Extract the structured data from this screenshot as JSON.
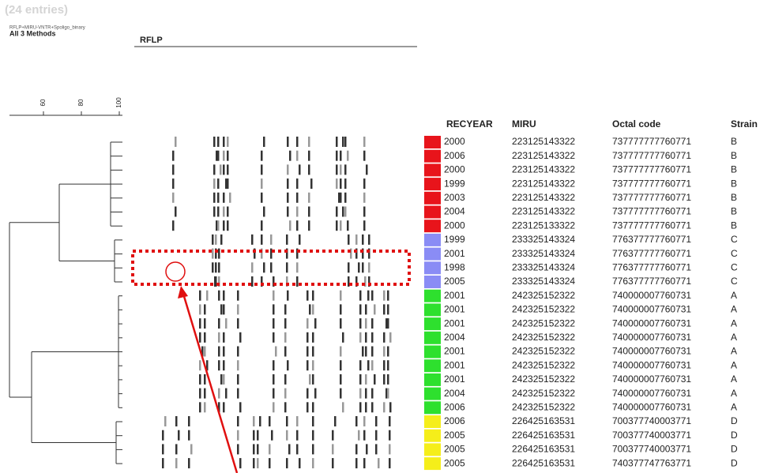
{
  "header": {
    "count": "(24 entries)",
    "methods_full": "RFLP+MIRU-VNTR+Spoligo_binary",
    "methods": "All 3 Methods",
    "panel": "RFLP"
  },
  "dendrogram": {
    "ticks": [
      "60",
      "80",
      "100"
    ]
  },
  "table": {
    "columns": [
      "RECYEAR",
      "MIRU",
      "Octal code",
      "Strain"
    ],
    "strain_colors": {
      "B": "#e8141b",
      "C": "#8a8cf5",
      "A": "#2ee02e",
      "D": "#f5ee1a"
    },
    "rows": [
      [
        "2000",
        "223125143322",
        "737777777760771",
        "B"
      ],
      [
        "2006",
        "223125143322",
        "737777777760771",
        "B"
      ],
      [
        "2000",
        "223125143322",
        "737777777760771",
        "B"
      ],
      [
        "1999",
        "223125143322",
        "737777777760771",
        "B"
      ],
      [
        "2003",
        "223125143322",
        "737777777760771",
        "B"
      ],
      [
        "2004",
        "223125143322",
        "737777777760771",
        "B"
      ],
      [
        "2000",
        "223125133322",
        "737777777760771",
        "B"
      ],
      [
        "1999",
        "233325143324",
        "776377777760771",
        "C"
      ],
      [
        "2001",
        "233325143324",
        "776377777760771",
        "C"
      ],
      [
        "1998",
        "233325143324",
        "776377777760771",
        "C"
      ],
      [
        "2005",
        "233325143324",
        "776377777760771",
        "C"
      ],
      [
        "2001",
        "242325152322",
        "740000007760731",
        "A"
      ],
      [
        "2001",
        "242325152322",
        "740000007760731",
        "A"
      ],
      [
        "2001",
        "242325152322",
        "740000007760731",
        "A"
      ],
      [
        "2004",
        "242325152322",
        "740000007760731",
        "A"
      ],
      [
        "2001",
        "242325152322",
        "740000007760731",
        "A"
      ],
      [
        "2001",
        "242325152322",
        "740000007760731",
        "A"
      ],
      [
        "2001",
        "242325152322",
        "740000007760731",
        "A"
      ],
      [
        "2004",
        "242325152322",
        "740000007760731",
        "A"
      ],
      [
        "2006",
        "242325152322",
        "740000007760731",
        "A"
      ],
      [
        "2006",
        "226425163531",
        "700377740003771",
        "D"
      ],
      [
        "2005",
        "226425163531",
        "700377740003771",
        "D"
      ],
      [
        "2005",
        "226425163531",
        "700377740003771",
        "D"
      ],
      [
        "2005",
        "226425163531",
        "740377747763771",
        "D"
      ]
    ]
  }
}
